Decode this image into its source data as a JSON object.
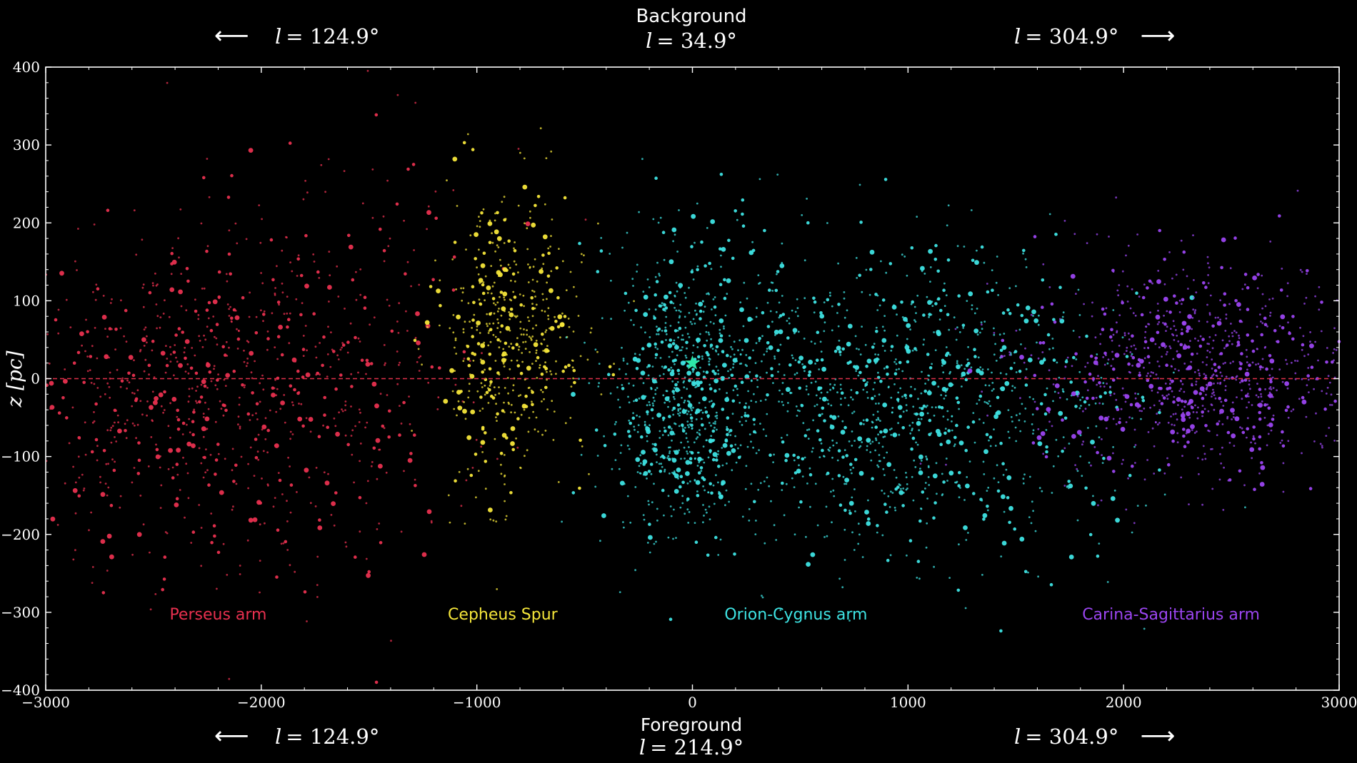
{
  "header": {
    "top_left": {
      "arrow": "⟵",
      "prefix": "l",
      "value": "= 124.9°"
    },
    "top_center": {
      "title": "Background",
      "prefix": "l",
      "value": "= 34.9°"
    },
    "top_right": {
      "prefix": "l",
      "value": "= 304.9°",
      "arrow": "⟶"
    },
    "bottom_left": {
      "arrow": "⟵",
      "prefix": "l",
      "value": "= 124.9°"
    },
    "bottom_center": {
      "title": "Foreground",
      "prefix": "l",
      "value": "= 214.9°"
    },
    "bottom_right": {
      "prefix": "l",
      "value": "= 304.9°",
      "arrow": "⟶"
    }
  },
  "chart_data": {
    "type": "scatter",
    "title": "",
    "xlabel": "",
    "ylabel": "z [pc]",
    "xlim": [
      -3000,
      3000
    ],
    "ylim": [
      -400,
      400
    ],
    "xticks": [
      -3000,
      -2000,
      -1000,
      0,
      1000,
      2000,
      3000
    ],
    "yticks": [
      -400,
      -300,
      -200,
      -100,
      0,
      100,
      200,
      300,
      400
    ],
    "xtick_labels": [
      "−3000",
      "−2000",
      "−1000",
      "0",
      "1000",
      "2000",
      "3000"
    ],
    "ytick_labels": [
      "−400",
      "−300",
      "−200",
      "−100",
      "0",
      "100",
      "200",
      "300",
      "400"
    ],
    "grid": false,
    "reference_line": {
      "y": 0,
      "color": "#e0314b",
      "style": "dashed"
    },
    "sun_marker": {
      "x": 0,
      "y": 20,
      "color": "#2ee8a8",
      "shape": "star"
    },
    "series": [
      {
        "name": "Perseus arm",
        "color": "#e8304f",
        "label_pos": [
          -2200,
          -302
        ],
        "clusters": [
          {
            "cx": -2350,
            "cy": -20,
            "sx": 420,
            "sy": 105,
            "n": 700
          },
          {
            "cx": -1550,
            "cy": 30,
            "sx": 300,
            "sy": 140,
            "n": 230
          }
        ]
      },
      {
        "name": "Cepheus Spur",
        "color": "#f5e63a",
        "label_pos": [
          -880,
          -302
        ],
        "clusters": [
          {
            "cx": -850,
            "cy": 45,
            "sx": 170,
            "sy": 95,
            "n": 520
          }
        ]
      },
      {
        "name": "Orion-Cygnus arm",
        "color": "#3ee3e3",
        "label_pos": [
          480,
          -302
        ],
        "clusters": [
          {
            "cx": -50,
            "cy": -20,
            "sx": 180,
            "sy": 95,
            "n": 700
          },
          {
            "cx": 700,
            "cy": -25,
            "sx": 420,
            "sy": 100,
            "n": 800
          },
          {
            "cx": 1350,
            "cy": -30,
            "sx": 400,
            "sy": 100,
            "n": 400
          }
        ]
      },
      {
        "name": "Carina-Sagittarius arm",
        "color": "#9b45f0",
        "label_pos": [
          2220,
          -302
        ],
        "clusters": [
          {
            "cx": 2350,
            "cy": 10,
            "sx": 380,
            "sy": 70,
            "n": 900
          }
        ]
      }
    ]
  }
}
